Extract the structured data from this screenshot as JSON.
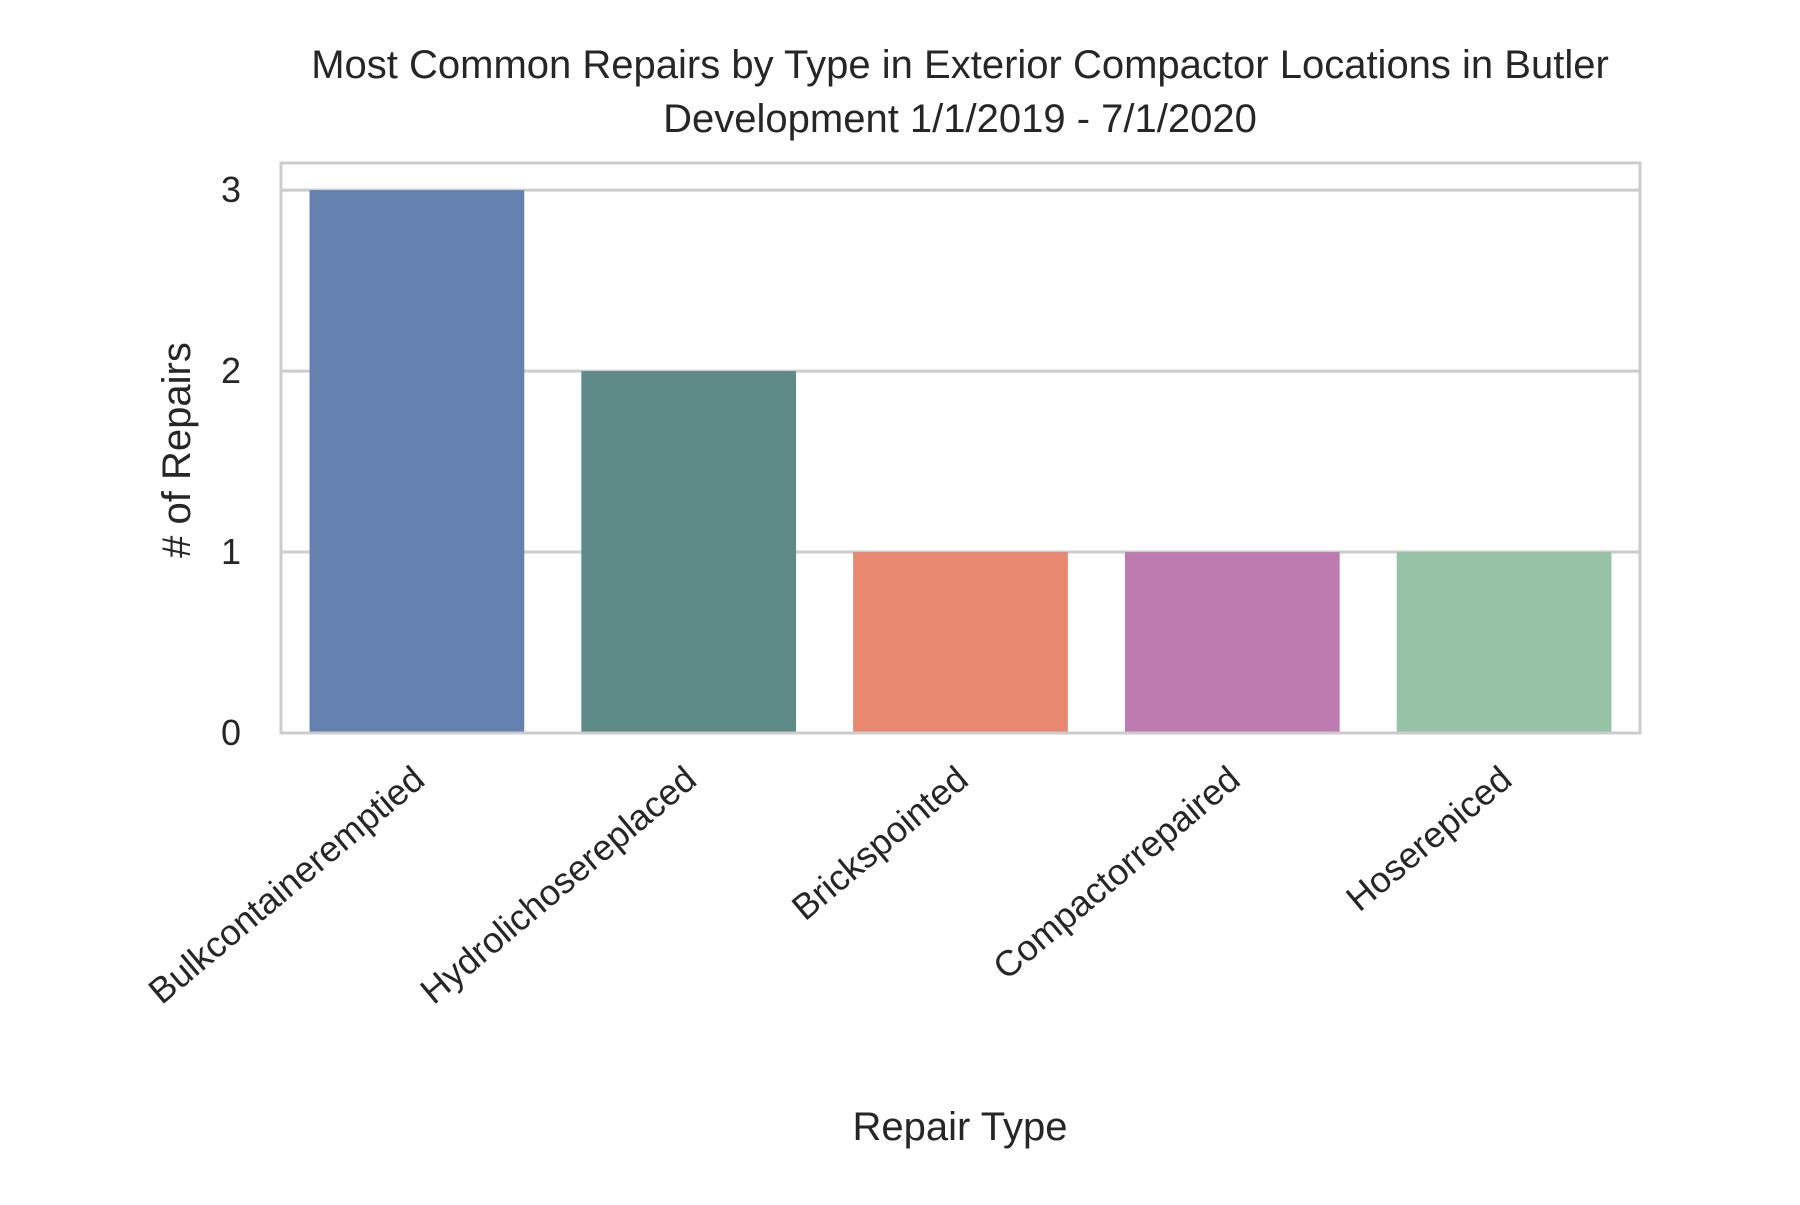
{
  "chart_data": {
    "type": "bar",
    "title_lines": [
      "Most Common Repairs by Type in Exterior Compactor Locations in Butler",
      "Development 1/1/2019 - 7/1/2020"
    ],
    "xlabel": "Repair Type",
    "ylabel": "# of Repairs",
    "categories": [
      "Bulkcontaineremptied",
      "Hydrolichosereplaced",
      "Brickspointed",
      "Compactorrepaired",
      "Hoserepiced"
    ],
    "values": [
      3,
      2,
      1,
      1,
      1
    ],
    "colors": [
      "#6581B0",
      "#5E8A88",
      "#E88871",
      "#BE7BB0",
      "#96C2A5"
    ],
    "yticks": [
      0,
      1,
      2,
      3
    ],
    "ylim": [
      0,
      3.15
    ],
    "grid": true
  }
}
